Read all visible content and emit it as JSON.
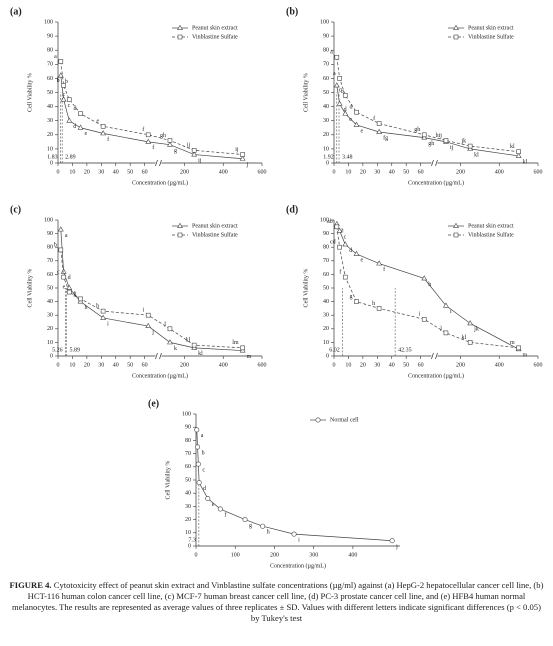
{
  "chart_data": [
    {
      "type": "line",
      "panel": "(a)",
      "y_label": "Cell Viability %",
      "x_label": "Concentration (µg/mL)",
      "xlim": [
        0,
        600
      ],
      "xbreak": [
        65,
        100
      ],
      "xticks": [
        0,
        10,
        20,
        30,
        40,
        50,
        60,
        200,
        400,
        600
      ],
      "ylim": [
        0,
        100
      ],
      "yticks": [
        0,
        10,
        20,
        30,
        40,
        50,
        60,
        70,
        80,
        90,
        100
      ],
      "x_markers": [
        1.83,
        2.89
      ],
      "x": [
        1.95,
        3.9,
        7.8,
        15.6,
        31.25,
        62.5,
        125,
        250,
        500
      ],
      "series": [
        {
          "name": "Peanut skin extract",
          "color": "#444444",
          "marker": "triangle",
          "dash": false,
          "values": [
            62,
            45,
            30,
            25,
            21,
            15,
            13,
            6,
            3
          ],
          "value_labels": [
            "b",
            "c",
            "d",
            "e",
            "f",
            "f",
            "g",
            "ij",
            "j"
          ]
        },
        {
          "name": "Vinblastine Sulfate",
          "color": "#444444",
          "marker": "square",
          "dash": true,
          "values": [
            72,
            55,
            45,
            35,
            26,
            20,
            16,
            9,
            6
          ],
          "value_labels": [
            "a",
            "b",
            "c",
            "d",
            "e",
            "f",
            "gh",
            "ij",
            "ij"
          ]
        }
      ]
    },
    {
      "type": "line",
      "panel": "(b)",
      "y_label": "Cell Viability %",
      "x_label": "Concentration (µg/mL)",
      "xlim": [
        0,
        600
      ],
      "xbreak": [
        65,
        100
      ],
      "xticks": [
        0,
        10,
        20,
        30,
        40,
        50,
        60,
        200,
        400,
        600
      ],
      "ylim": [
        0,
        100
      ],
      "yticks": [
        0,
        10,
        20,
        30,
        40,
        50,
        60,
        70,
        80,
        90,
        100
      ],
      "x_markers": [
        1.92,
        3.48
      ],
      "x": [
        1.95,
        3.9,
        7.8,
        15.6,
        31.25,
        62.5,
        125,
        250,
        500
      ],
      "series": [
        {
          "name": "Peanut skin extract",
          "color": "#444444",
          "marker": "triangle",
          "dash": false,
          "values": [
            55,
            42,
            35,
            27,
            22,
            18,
            15,
            10,
            5
          ],
          "value_labels": [
            "b",
            "d",
            "e",
            "e",
            "fg",
            "gh",
            "ij",
            "kl",
            "kl"
          ]
        },
        {
          "name": "Vinblastine Sulfate",
          "color": "#444444",
          "marker": "square",
          "dash": true,
          "values": [
            75,
            60,
            48,
            36,
            28,
            20,
            16,
            12,
            8
          ],
          "value_labels": [
            "a",
            "a",
            "c",
            "d",
            "f",
            "gh",
            "hij",
            "jk",
            "kl"
          ]
        }
      ]
    },
    {
      "type": "line",
      "panel": "(c)",
      "y_label": "Cell Viability %",
      "x_label": "Concentration (µg/mL)",
      "xlim": [
        0,
        600
      ],
      "xbreak": [
        65,
        100
      ],
      "xticks": [
        0,
        10,
        20,
        30,
        40,
        50,
        60,
        200,
        400,
        600
      ],
      "ylim": [
        0,
        100
      ],
      "yticks": [
        0,
        10,
        20,
        30,
        40,
        50,
        60,
        70,
        80,
        90,
        100
      ],
      "x_markers": [
        5.26,
        5.89
      ],
      "x": [
        1.95,
        3.9,
        7.8,
        15.6,
        31.25,
        62.5,
        125,
        250,
        500
      ],
      "series": [
        {
          "name": "Peanut skin extract",
          "color": "#444444",
          "marker": "triangle",
          "dash": false,
          "values": [
            93,
            62,
            50,
            40,
            28,
            22,
            10,
            6,
            4
          ],
          "value_labels": [
            "a",
            "d",
            "f",
            "h",
            "i",
            "j",
            "k",
            "kl",
            "m"
          ]
        },
        {
          "name": "Vinblastine Sulfate",
          "color": "#444444",
          "marker": "square",
          "dash": true,
          "values": [
            78,
            58,
            47,
            42,
            33,
            30,
            20,
            8,
            6
          ],
          "value_labels": [
            "b",
            "c",
            "e",
            "g",
            "h",
            "i",
            "j",
            "kl",
            "lm"
          ]
        }
      ]
    },
    {
      "type": "line",
      "panel": "(d)",
      "y_label": "Cell Viability %",
      "x_label": "Concentration (µg/mL)",
      "xlim": [
        0,
        600
      ],
      "xbreak": [
        65,
        100
      ],
      "xticks": [
        0,
        10,
        20,
        30,
        40,
        50,
        60,
        200,
        400,
        600
      ],
      "ylim": [
        0,
        100
      ],
      "yticks": [
        0,
        10,
        20,
        30,
        40,
        50,
        60,
        70,
        80,
        90,
        100
      ],
      "x_markers": [
        6.02,
        42.35
      ],
      "x": [
        1.95,
        3.9,
        7.8,
        15.6,
        31.25,
        62.5,
        125,
        250,
        500
      ],
      "series": [
        {
          "name": "Peanut skin extract",
          "color": "#444444",
          "marker": "triangle",
          "dash": false,
          "values": [
            97,
            92,
            82,
            75,
            68,
            57,
            37,
            24,
            5
          ],
          "value_labels": [
            "a",
            "c",
            "d",
            "e",
            "f",
            "h",
            "i",
            "jk",
            "m"
          ]
        },
        {
          "name": "Vinblastine Sulfate",
          "color": "#444444",
          "marker": "square",
          "dash": true,
          "values": [
            95,
            80,
            58,
            40,
            35,
            27,
            17,
            10,
            6
          ],
          "value_labels": [
            "ab",
            "cd",
            "f",
            "g",
            "h",
            "i",
            "j",
            "kl",
            "m"
          ]
        }
      ]
    },
    {
      "type": "line",
      "panel": "(e)",
      "y_label": "Cell Viability %",
      "x_label": "Concentration (µg/mL)",
      "xlim": [
        0,
        520
      ],
      "xticks": [
        0,
        100,
        200,
        300,
        400
      ],
      "ylim": [
        0,
        100
      ],
      "yticks": [
        0,
        10,
        20,
        30,
        40,
        50,
        60,
        70,
        80,
        90,
        100
      ],
      "x_markers": [
        7.3
      ],
      "x": [
        2,
        4,
        6,
        8,
        30,
        62,
        125,
        170,
        250,
        500
      ],
      "series": [
        {
          "name": "Normal cell",
          "color": "#444444",
          "marker": "circle",
          "dash": false,
          "values": [
            88,
            75,
            62,
            48,
            36,
            28,
            20,
            15,
            9,
            4
          ],
          "value_labels": [
            "a",
            "b",
            "c",
            "d",
            "e",
            "f",
            "g",
            "h",
            "i",
            "j"
          ]
        }
      ]
    }
  ],
  "caption_label": "FIGURE 4.",
  "caption": "Cytotoxicity effect of peanut skin extract and Vinblastine sulfate concentrations (µg/ml) against (a) HepG-2 hepatocellular cancer cell line, (b) HCT-116 human colon cancer cell line, (c) MCF-7 human breast cancer cell line, (d) PC-3 prostate cancer cell line, and (e) HFB4 human normal melanocytes. The results are represented as average values of three replicates ± SD. Values with different letters indicate significant differences (p < 0.05) by Tukey's test"
}
